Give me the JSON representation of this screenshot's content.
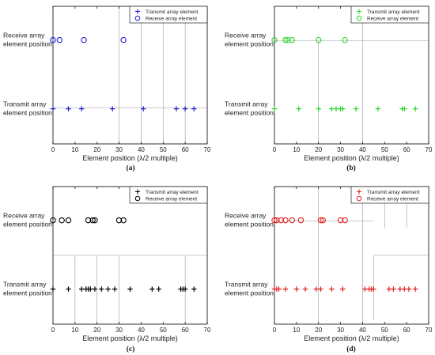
{
  "chart_data": [
    {
      "panel_label": "(a)",
      "type": "scatter",
      "color": "#1f1fd6",
      "xlabel": "Element position (λ/2 multiple)",
      "xlim": [
        0,
        70
      ],
      "xticks": [
        "0",
        "10",
        "20",
        "30",
        "40",
        "50",
        "60",
        "70"
      ],
      "row_labels": [
        [
          "Receive array",
          "element position"
        ],
        [
          "Transmit array",
          "element position"
        ]
      ],
      "legend": [
        "Transmit array element",
        "Receive array element"
      ],
      "transmit_positions": [
        0,
        7,
        13,
        27,
        41,
        56,
        60,
        64
      ],
      "receive_positions": [
        0,
        3,
        14,
        32
      ],
      "grid": "partial"
    },
    {
      "panel_label": "(b)",
      "type": "scatter",
      "color": "#2fd62f",
      "xlabel": "Element position (λ/2 multiple)",
      "xlim": [
        0,
        70
      ],
      "xticks": [
        "0",
        "10",
        "20",
        "30",
        "40",
        "50",
        "60",
        "70"
      ],
      "row_labels": [
        [
          "Receive array",
          "element position"
        ],
        [
          "Transmit array",
          "element position"
        ]
      ],
      "legend": [
        "Transmit array element",
        "Receive array element"
      ],
      "transmit_positions": [
        0,
        11,
        20,
        26,
        28,
        30,
        31,
        37,
        47,
        58,
        59,
        64
      ],
      "receive_positions": [
        0,
        5,
        6,
        8,
        20,
        32
      ],
      "grid": "partial"
    },
    {
      "panel_label": "(c)",
      "type": "scatter",
      "color": "#000000",
      "xlabel": "Element position (λ/2 multiple)",
      "xlim": [
        0,
        70
      ],
      "xticks": [
        "0",
        "10",
        "20",
        "30",
        "40",
        "50",
        "60",
        "70"
      ],
      "row_labels": [
        [
          "Receive array",
          "element position"
        ],
        [
          "Transmit array",
          "element position"
        ]
      ],
      "legend": [
        "Transmit array element",
        "Receive array element"
      ],
      "transmit_positions": [
        0,
        7,
        13,
        15,
        16,
        17,
        19,
        22,
        25,
        28,
        35,
        45,
        48,
        58,
        59,
        60,
        64
      ],
      "receive_positions": [
        0,
        4,
        7,
        16,
        18,
        19,
        30,
        32
      ],
      "grid": "partial"
    },
    {
      "panel_label": "(d)",
      "type": "scatter",
      "color": "#e02020",
      "xlabel": "Element position (λ/2 multiple)",
      "xlim": [
        0,
        70
      ],
      "xticks": [
        "0",
        "10",
        "20",
        "30",
        "40",
        "50",
        "60",
        "70"
      ],
      "row_labels": [
        [
          "Receive array",
          "element position"
        ],
        [
          "Transmit array",
          "element position"
        ]
      ],
      "legend": [
        "Transmit array element",
        "Receive array element"
      ],
      "transmit_positions": [
        0,
        1,
        2,
        5,
        10,
        14,
        19,
        21,
        26,
        31,
        41,
        43,
        44,
        45,
        52,
        54,
        57,
        59,
        61,
        64
      ],
      "receive_positions": [
        0,
        1,
        3,
        5,
        8,
        12,
        21,
        22,
        30,
        32
      ],
      "grid": "partial"
    }
  ]
}
